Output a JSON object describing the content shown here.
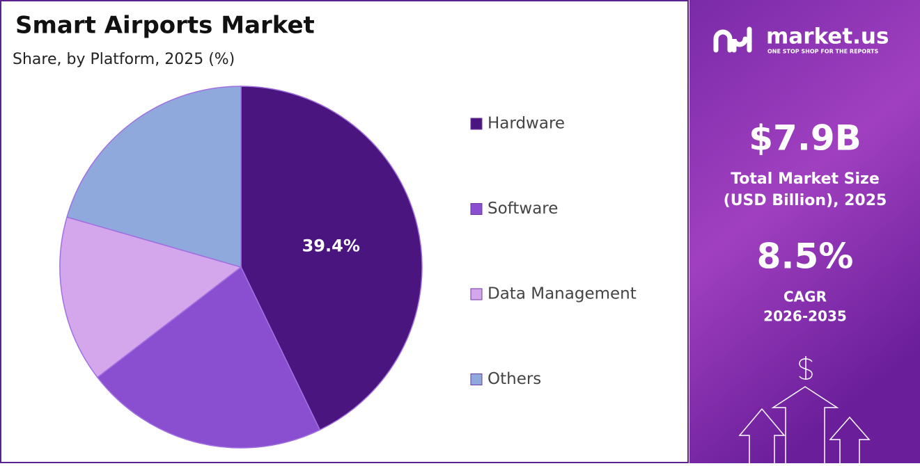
{
  "chart_data": {
    "type": "pie",
    "title": "Smart Airports Market",
    "subtitle": "Share, by Platform, 2025 (%)",
    "categories": [
      "Hardware",
      "Software",
      "Data Management",
      "Others"
    ],
    "values": [
      39.4,
      20,
      13.7,
      18.9
    ],
    "value_labels": [
      "39.4%",
      null,
      null,
      null
    ],
    "colors": [
      "#4b1580",
      "#8a4fd0",
      "#d4a6ec",
      "#8fa9dc"
    ],
    "legend": "right"
  },
  "panel": {
    "brand": "market.us",
    "tagline": "ONE STOP SHOP FOR THE REPORTS",
    "market_size": "$7.9B",
    "market_size_label": [
      "Total Market Size",
      "(USD Billion), 2025"
    ],
    "cagr": "8.5%",
    "cagr_label": "CAGR",
    "cagr_period": "2026-2035"
  }
}
